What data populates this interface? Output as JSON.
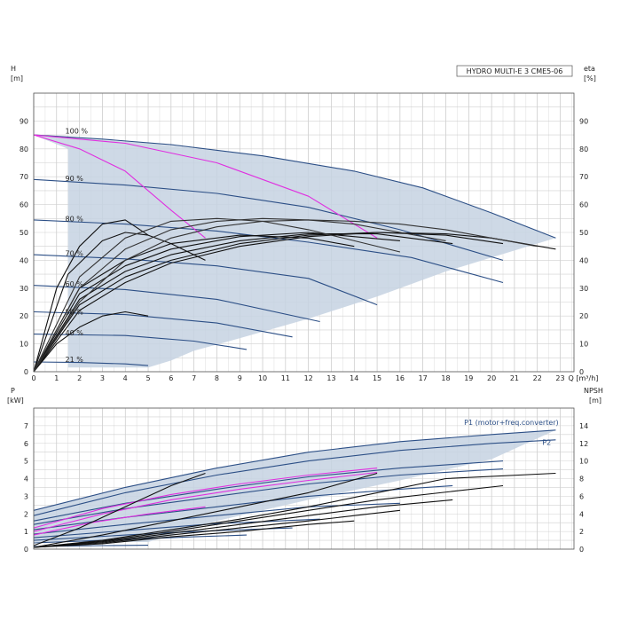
{
  "chart_data": [
    {
      "type": "line",
      "title": "HYDRO MULTI-E 3 CME5-06",
      "xlabel": "Q [m³/h]",
      "ylabel_left": "H\n[m]",
      "ylabel_right": "eta\n[%]",
      "xlim": [
        0,
        23.6
      ],
      "ylim": [
        0,
        100
      ],
      "x_ticks": [
        0,
        1,
        2,
        3,
        4,
        5,
        6,
        7,
        8,
        9,
        10,
        11,
        12,
        13,
        14,
        15,
        16,
        17,
        18,
        19,
        20,
        21,
        22,
        23
      ],
      "y_ticks_left": [
        0,
        10,
        20,
        30,
        40,
        50,
        60,
        70,
        80,
        90
      ],
      "y_ticks_right": [
        0,
        10,
        20,
        30,
        40,
        50,
        60,
        70,
        80,
        90
      ],
      "grid": true,
      "speed_labels": [
        {
          "text": "100 %",
          "q": 1.3,
          "h": 86.5
        },
        {
          "text": "90 %",
          "q": 1.3,
          "h": 69.5
        },
        {
          "text": "80 %",
          "q": 1.3,
          "h": 55
        },
        {
          "text": "70 %",
          "q": 1.3,
          "h": 42.5
        },
        {
          "text": "60 %",
          "q": 1.3,
          "h": 31.5
        },
        {
          "text": "50 %",
          "q": 1.3,
          "h": 21.5
        },
        {
          "text": "40 %",
          "q": 1.3,
          "h": 14
        },
        {
          "text": "21 %",
          "q": 1.3,
          "h": 4.5
        }
      ],
      "envelope": [
        [
          0,
          85
        ],
        [
          5,
          82
        ],
        [
          10,
          77.5
        ],
        [
          14,
          72
        ],
        [
          17,
          66
        ],
        [
          20,
          57
        ],
        [
          22.8,
          48
        ],
        [
          21,
          43.5
        ],
        [
          18,
          36
        ],
        [
          15,
          27
        ],
        [
          12,
          19
        ],
        [
          9,
          12
        ],
        [
          7,
          7.5
        ],
        [
          6,
          4
        ],
        [
          5,
          1.5
        ],
        [
          1.5,
          1.5
        ],
        [
          1.5,
          80
        ],
        [
          0,
          85
        ]
      ],
      "series": [
        {
          "name": "100 %",
          "color": "#2c4f86",
          "x": [
            0,
            3,
            6,
            10,
            14,
            17,
            20,
            22.8
          ],
          "y": [
            85,
            83.5,
            81.5,
            77.5,
            72,
            66,
            57,
            48
          ]
        },
        {
          "name": "90 %",
          "color": "#2c4f86",
          "x": [
            0,
            4,
            8,
            12,
            16,
            20.5
          ],
          "y": [
            69,
            67,
            64,
            59,
            51,
            40
          ]
        },
        {
          "name": "80 %",
          "color": "#2c4f86",
          "x": [
            0,
            4,
            8,
            12,
            16.5,
            20.5
          ],
          "y": [
            54.5,
            53,
            50.5,
            46.5,
            41,
            32
          ]
        },
        {
          "name": "70 %",
          "color": "#2c4f86",
          "x": [
            0,
            4,
            8,
            12,
            15
          ],
          "y": [
            42,
            40.5,
            38,
            33.5,
            24
          ]
        },
        {
          "name": "60 %",
          "color": "#2c4f86",
          "x": [
            0,
            4,
            8,
            12.5
          ],
          "y": [
            31,
            29.5,
            26,
            18
          ]
        },
        {
          "name": "50 %",
          "color": "#2c4f86",
          "x": [
            0,
            4,
            8,
            11.3
          ],
          "y": [
            21.5,
            20.5,
            17.5,
            12.5
          ]
        },
        {
          "name": "40 %",
          "color": "#2c4f86",
          "x": [
            0,
            4,
            7,
            9.3
          ],
          "y": [
            13.5,
            13,
            11,
            8
          ]
        },
        {
          "name": "21 %",
          "color": "#2c4f86",
          "x": [
            0,
            2,
            4,
            5
          ],
          "y": [
            3.5,
            3.3,
            2.8,
            2.2
          ]
        },
        {
          "name": "",
          "color": "#e030e0",
          "x": [
            0,
            2,
            4,
            6,
            7.5
          ],
          "y": [
            85,
            80,
            72,
            58,
            48
          ]
        },
        {
          "name": "",
          "color": "#e030e0",
          "x": [
            0,
            4,
            8,
            12,
            15
          ],
          "y": [
            85,
            82,
            75,
            63,
            48
          ]
        },
        {
          "name": "",
          "color": "#111111",
          "x": [
            0,
            2,
            4,
            6,
            9,
            12,
            15,
            18,
            20,
            22.8
          ],
          "y": [
            0,
            22,
            32,
            39,
            45,
            48.5,
            50,
            49.5,
            48,
            44
          ]
        },
        {
          "name": "",
          "color": "#111111",
          "x": [
            0,
            2,
            4,
            6,
            9,
            12,
            15,
            18,
            20.5
          ],
          "y": [
            0,
            24,
            34,
            40,
            46,
            49,
            50,
            49,
            46
          ]
        },
        {
          "name": "",
          "color": "#111111",
          "x": [
            0,
            2,
            4,
            6,
            9,
            12,
            15,
            18.3
          ],
          "y": [
            0,
            26,
            36,
            42,
            47,
            49.5,
            49.5,
            46
          ]
        },
        {
          "name": "",
          "color": "#111111",
          "x": [
            0,
            2,
            4,
            6,
            9,
            12,
            16
          ],
          "y": [
            0,
            28,
            38,
            44,
            48.5,
            50,
            47
          ]
        },
        {
          "name": "",
          "color": "#111111",
          "x": [
            0,
            2,
            4,
            6,
            9,
            12,
            14
          ],
          "y": [
            0,
            30,
            40,
            46,
            49,
            48,
            45
          ]
        },
        {
          "name": "",
          "color": "#111111",
          "x": [
            0,
            1.5,
            3,
            4,
            5,
            6,
            7.5
          ],
          "y": [
            0,
            35,
            47,
            50,
            49,
            46,
            40
          ]
        },
        {
          "name": "",
          "color": "#111111",
          "x": [
            0,
            1,
            2,
            3,
            4,
            5
          ],
          "y": [
            0,
            30,
            45,
            53,
            54.5,
            49
          ]
        },
        {
          "name": "",
          "color": "#111111",
          "x": [
            0,
            1,
            2,
            3,
            4,
            5
          ],
          "y": [
            0,
            10,
            16,
            20,
            21.5,
            20
          ]
        },
        {
          "name": "",
          "color": "#333333",
          "x": [
            0,
            2,
            4,
            6,
            8,
            10,
            12,
            14,
            16,
            18,
            20,
            22
          ],
          "y": [
            0,
            25,
            40,
            48,
            52,
            54,
            54.5,
            54,
            53,
            51,
            48,
            45
          ]
        },
        {
          "name": "",
          "color": "#333333",
          "x": [
            0,
            2,
            4,
            6,
            8,
            10,
            12,
            14,
            16,
            18
          ],
          "y": [
            0,
            30,
            44,
            51,
            54,
            55,
            54.5,
            53,
            50,
            47
          ]
        },
        {
          "name": "",
          "color": "#333333",
          "x": [
            0,
            2,
            4,
            6,
            8,
            10,
            12,
            14,
            16
          ],
          "y": [
            0,
            34,
            48,
            54,
            55,
            54,
            51,
            47,
            43
          ]
        }
      ]
    },
    {
      "type": "line",
      "xlabel": "",
      "ylabel_left": "P\n[kW]",
      "ylabel_right": "NPSH\n[m]",
      "xlim": [
        0,
        23.6
      ],
      "ylim": [
        0,
        8
      ],
      "y_ticks_left": [
        0,
        1,
        2,
        3,
        4,
        5,
        6,
        7
      ],
      "y_ticks_right": [
        0,
        2,
        4,
        6,
        8,
        10,
        12,
        14
      ],
      "grid": true,
      "legend": [
        {
          "text": "P1 (motor+freq.converter)"
        },
        {
          "text": "P2"
        }
      ],
      "envelope": [
        [
          0,
          2.2
        ],
        [
          4,
          3.5
        ],
        [
          8,
          4.6
        ],
        [
          12,
          5.5
        ],
        [
          16,
          6.1
        ],
        [
          20,
          6.5
        ],
        [
          22.8,
          6.75
        ],
        [
          20,
          5.1
        ],
        [
          16,
          3.9
        ],
        [
          12,
          2.8
        ],
        [
          8,
          1.6
        ],
        [
          5,
          0.4
        ],
        [
          0,
          0.4
        ]
      ],
      "series": [
        {
          "name": "P1 (motor+freq.converter)",
          "color": "#2c4f86",
          "x": [
            0,
            4,
            8,
            12,
            16,
            20,
            22.8
          ],
          "y": [
            2.2,
            3.5,
            4.6,
            5.5,
            6.1,
            6.5,
            6.75
          ]
        },
        {
          "name": "P2",
          "color": "#2c4f86",
          "x": [
            0,
            4,
            8,
            12,
            16,
            20,
            22.8
          ],
          "y": [
            1.9,
            3.2,
            4.2,
            5.0,
            5.6,
            6.0,
            6.2
          ]
        },
        {
          "name": "",
          "color": "#2c4f86",
          "x": [
            0,
            4,
            8,
            12,
            16,
            20.5
          ],
          "y": [
            1.6,
            2.6,
            3.4,
            4.1,
            4.6,
            5.0
          ]
        },
        {
          "name": "",
          "color": "#2c4f86",
          "x": [
            0,
            4,
            8,
            12,
            16,
            20.5
          ],
          "y": [
            1.4,
            2.3,
            3.0,
            3.7,
            4.2,
            4.55
          ]
        },
        {
          "name": "",
          "color": "#2c4f86",
          "x": [
            0,
            4,
            8,
            12,
            16,
            18.3
          ],
          "y": [
            1.1,
            1.8,
            2.4,
            3.0,
            3.4,
            3.6
          ]
        },
        {
          "name": "",
          "color": "#2c4f86",
          "x": [
            0,
            4,
            8,
            12,
            16
          ],
          "y": [
            0.85,
            1.4,
            1.9,
            2.4,
            2.6
          ]
        },
        {
          "name": "",
          "color": "#2c4f86",
          "x": [
            0,
            4,
            8,
            12.5
          ],
          "y": [
            0.65,
            1.05,
            1.45,
            1.7
          ]
        },
        {
          "name": "",
          "color": "#2c4f86",
          "x": [
            0,
            4,
            8,
            11.3
          ],
          "y": [
            0.5,
            0.8,
            1.05,
            1.2
          ]
        },
        {
          "name": "",
          "color": "#2c4f86",
          "x": [
            0,
            4,
            7,
            9.3
          ],
          "y": [
            0.35,
            0.55,
            0.7,
            0.8
          ]
        },
        {
          "name": "",
          "color": "#2c4f86",
          "x": [
            0,
            3,
            5
          ],
          "y": [
            0.15,
            0.2,
            0.22
          ]
        },
        {
          "name": "",
          "color": "#e030e0",
          "x": [
            0,
            3,
            6,
            9,
            12,
            15
          ],
          "y": [
            1.2,
            2.3,
            3.1,
            3.7,
            4.2,
            4.6
          ]
        },
        {
          "name": "",
          "color": "#e030e0",
          "x": [
            0,
            3,
            6,
            9,
            12,
            15
          ],
          "y": [
            1.0,
            2.0,
            2.8,
            3.4,
            3.9,
            4.35
          ]
        },
        {
          "name": "",
          "color": "#e030e0",
          "x": [
            0,
            2.5,
            5,
            7.5
          ],
          "y": [
            0.8,
            1.5,
            2.0,
            2.4
          ]
        },
        {
          "name": "",
          "color": "#111111",
          "x": [
            0,
            3,
            6,
            9,
            12,
            15,
            18,
            22.8
          ],
          "y": [
            0.1,
            0.5,
            1.1,
            1.7,
            2.4,
            3.2,
            4.0,
            4.3
          ]
        },
        {
          "name": "",
          "color": "#111111",
          "x": [
            0,
            3,
            6,
            9,
            12,
            15,
            20.5
          ],
          "y": [
            0.1,
            0.45,
            1.0,
            1.6,
            2.2,
            2.8,
            3.6
          ]
        },
        {
          "name": "",
          "color": "#111111",
          "x": [
            0,
            3,
            6,
            9,
            12,
            15,
            18.3
          ],
          "y": [
            0.1,
            0.4,
            0.9,
            1.4,
            1.9,
            2.4,
            2.8
          ]
        },
        {
          "name": "",
          "color": "#111111",
          "x": [
            0,
            3,
            6,
            9,
            12,
            16
          ],
          "y": [
            0.1,
            0.35,
            0.8,
            1.2,
            1.6,
            2.2
          ]
        },
        {
          "name": "",
          "color": "#111111",
          "x": [
            0,
            3,
            6,
            9,
            12,
            14
          ],
          "y": [
            0.1,
            0.3,
            0.7,
            1.0,
            1.4,
            1.6
          ]
        },
        {
          "name": "",
          "color": "#111111",
          "x": [
            0,
            2,
            4,
            6,
            7.5
          ],
          "y": [
            0.2,
            1.2,
            2.4,
            3.6,
            4.3
          ]
        },
        {
          "name": "",
          "color": "#111111",
          "x": [
            0,
            3,
            6,
            9,
            12,
            15
          ],
          "y": [
            0.1,
            0.8,
            1.6,
            2.4,
            3.2,
            4.3
          ]
        }
      ]
    }
  ]
}
